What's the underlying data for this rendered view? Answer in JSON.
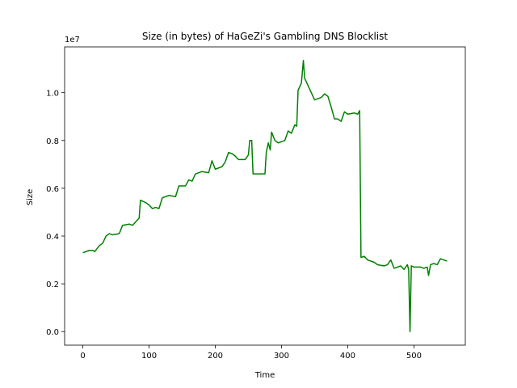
{
  "chart_data": {
    "type": "line",
    "title": "Size (in bytes) of HaGeZi's Gambling DNS Blocklist",
    "x_label": "Time",
    "y_label": "Size",
    "y_offset_label": "1e7",
    "x": [
      0,
      10,
      15,
      18,
      25,
      30,
      35,
      40,
      45,
      55,
      60,
      70,
      75,
      80,
      85,
      87,
      95,
      100,
      105,
      110,
      115,
      120,
      130,
      140,
      145,
      155,
      160,
      165,
      170,
      180,
      190,
      195,
      200,
      210,
      215,
      220,
      225,
      230,
      235,
      245,
      250,
      252,
      255,
      257,
      265,
      275,
      277,
      280,
      283,
      285,
      290,
      295,
      305,
      310,
      315,
      320,
      323,
      325,
      330,
      333,
      335,
      340,
      345,
      350,
      355,
      360,
      365,
      370,
      375,
      380,
      385,
      390,
      395,
      400,
      410,
      415,
      418,
      420,
      425,
      430,
      440,
      445,
      455,
      460,
      465,
      470,
      475,
      480,
      485,
      490,
      492,
      494,
      496,
      500,
      510,
      515,
      520,
      522,
      525,
      530,
      535,
      540,
      545,
      550
    ],
    "series": [
      {
        "name": "Size",
        "color": "#008000",
        "values": [
          3300000,
          3400000,
          3400000,
          3350000,
          3600000,
          3700000,
          4000000,
          4100000,
          4050000,
          4100000,
          4450000,
          4500000,
          4450000,
          4600000,
          4750000,
          5500000,
          5400000,
          5300000,
          5150000,
          5200000,
          5150000,
          5600000,
          5700000,
          5650000,
          6100000,
          6100000,
          6350000,
          6300000,
          6600000,
          6700000,
          6650000,
          7150000,
          6800000,
          6900000,
          7100000,
          7500000,
          7450000,
          7350000,
          7200000,
          7200000,
          7400000,
          8000000,
          8000000,
          6600000,
          6600000,
          6600000,
          7500000,
          7900000,
          7600000,
          8350000,
          8000000,
          7900000,
          8000000,
          8400000,
          8300000,
          8650000,
          8600000,
          10100000,
          10400000,
          11350000,
          10600000,
          10300000,
          10000000,
          9700000,
          9750000,
          9800000,
          9950000,
          9850000,
          9400000,
          8900000,
          8900000,
          8800000,
          9200000,
          9100000,
          9150000,
          9100000,
          9250000,
          3100000,
          3150000,
          3000000,
          2900000,
          2800000,
          2750000,
          2800000,
          3000000,
          2650000,
          2700000,
          2750000,
          2600000,
          2800000,
          2600000,
          0,
          2750000,
          2700000,
          2700000,
          2650000,
          2700000,
          2350000,
          2800000,
          2850000,
          2800000,
          3050000,
          3000000,
          2950000
        ]
      }
    ],
    "xlim": [
      -27.5,
      577.5
    ],
    "ylim": [
      -567500,
      11917500
    ],
    "xticks": [
      0,
      100,
      200,
      300,
      400,
      500
    ],
    "yticks": [
      {
        "value": 0,
        "label": "0.0"
      },
      {
        "value": 2000000,
        "label": "0.2"
      },
      {
        "value": 4000000,
        "label": "0.4"
      },
      {
        "value": 6000000,
        "label": "0.6"
      },
      {
        "value": 8000000,
        "label": "0.8"
      },
      {
        "value": 10000000,
        "label": "1.0"
      }
    ]
  }
}
